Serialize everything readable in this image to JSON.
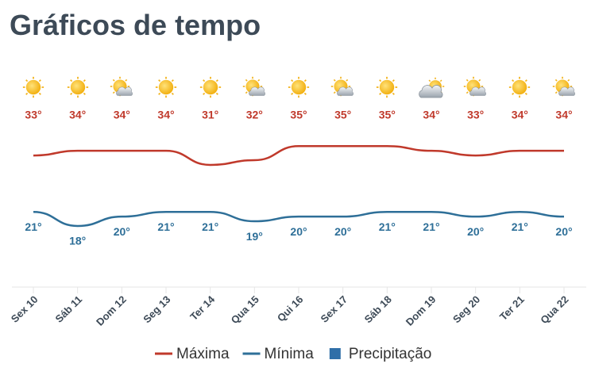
{
  "chart_data": {
    "type": "line",
    "title": "Gráficos de tempo",
    "categories": [
      "Sex 10",
      "Sáb 11",
      "Dom 12",
      "Seg 13",
      "Ter 14",
      "Qua 15",
      "Qui 16",
      "Sex 17",
      "Sáb 18",
      "Dom 19",
      "Seg 20",
      "Ter 21",
      "Qua 22"
    ],
    "series": [
      {
        "name": "Máxima",
        "color": "#c0392b",
        "kind": "line",
        "values": [
          33,
          34,
          34,
          34,
          31,
          32,
          35,
          35,
          35,
          34,
          33,
          34,
          34
        ],
        "value_labels": [
          "33°",
          "34°",
          "34°",
          "34°",
          "31°",
          "32°",
          "35°",
          "35°",
          "35°",
          "34°",
          "33°",
          "34°",
          "34°"
        ]
      },
      {
        "name": "Mínima",
        "color": "#2e6f98",
        "kind": "line",
        "values": [
          21,
          18,
          20,
          21,
          21,
          19,
          20,
          20,
          21,
          21,
          20,
          21,
          20
        ],
        "value_labels": [
          "21°",
          "18°",
          "20°",
          "21°",
          "21°",
          "19°",
          "20°",
          "20°",
          "21°",
          "21°",
          "20°",
          "21°",
          "20°"
        ]
      },
      {
        "name": "Precipitação",
        "color": "#2f6fa8",
        "kind": "bar",
        "values": [
          null,
          null,
          null,
          null,
          null,
          null,
          null,
          null,
          null,
          null,
          null,
          null,
          null
        ]
      }
    ],
    "ylim": [
      5,
      45
    ]
  }
}
